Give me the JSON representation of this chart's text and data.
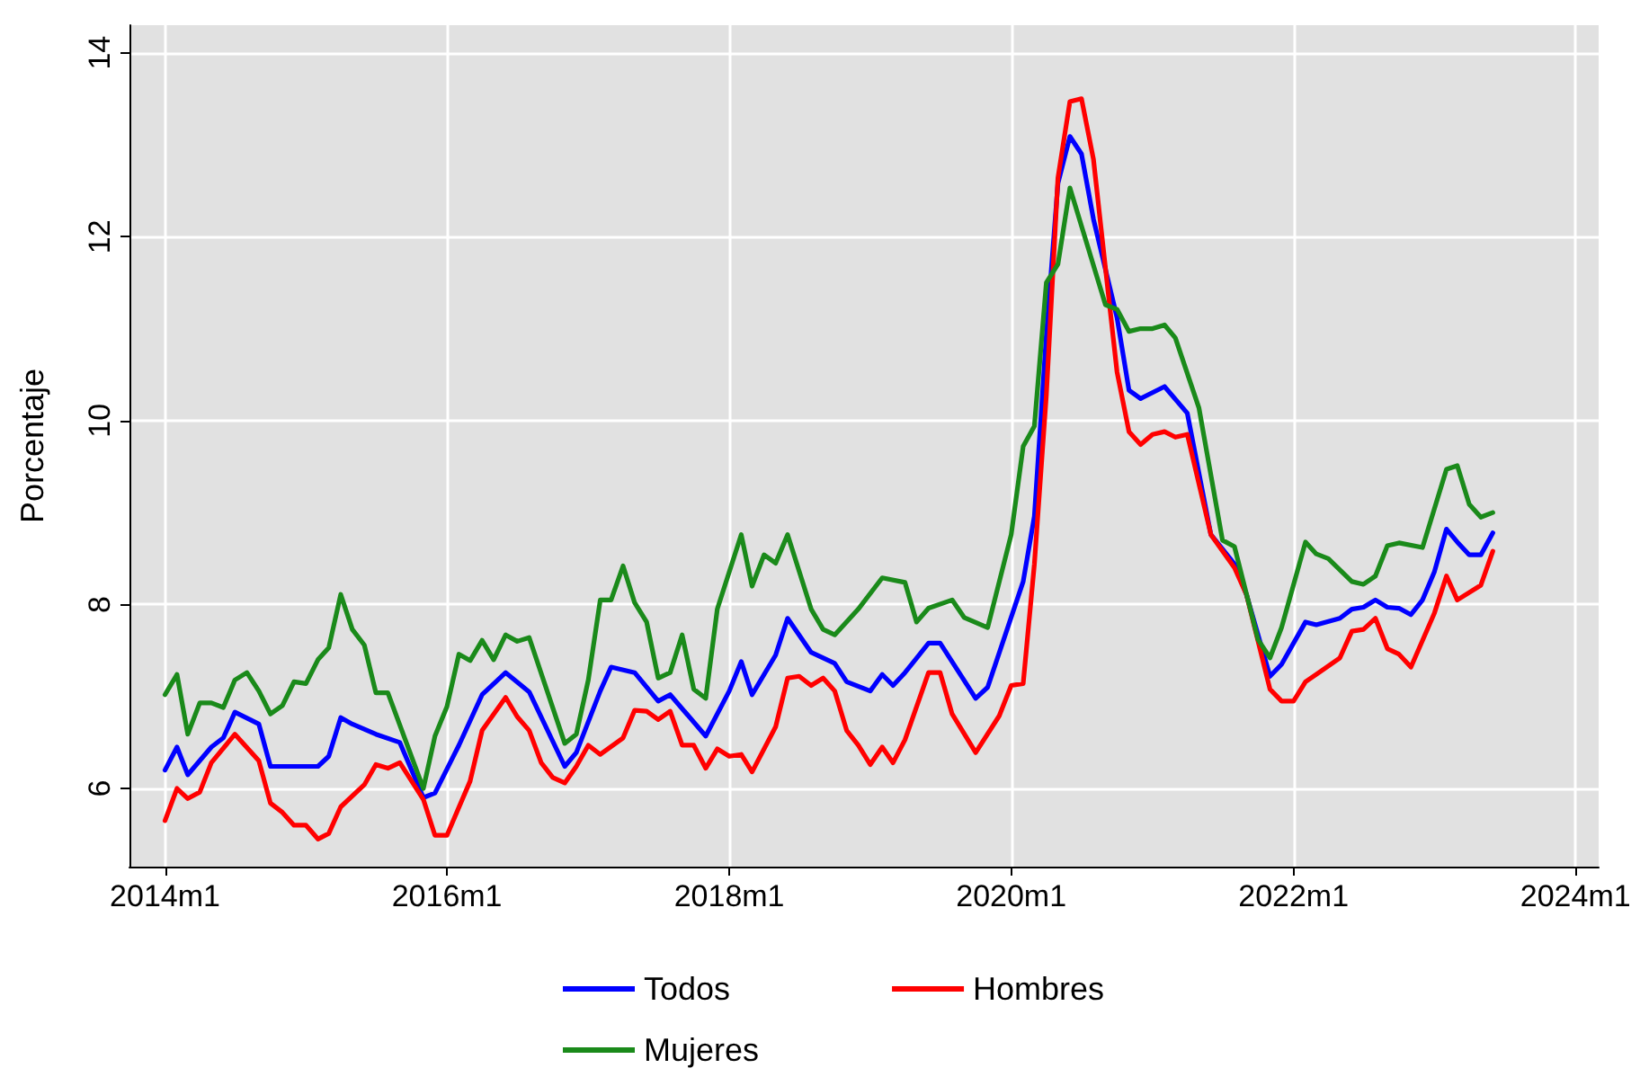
{
  "chart_data": {
    "type": "line",
    "ylabel": "Porcentaje",
    "xlim": [
      "2013-10",
      "2024-03"
    ],
    "ylim": [
      5.15,
      14.3
    ],
    "xticks": [
      {
        "value": "2014-01",
        "label": "2014m1"
      },
      {
        "value": "2016-01",
        "label": "2016m1"
      },
      {
        "value": "2018-01",
        "label": "2018m1"
      },
      {
        "value": "2020-01",
        "label": "2020m1"
      },
      {
        "value": "2022-01",
        "label": "2022m1"
      },
      {
        "value": "2024-01",
        "label": "2024m1"
      }
    ],
    "yticks": [
      6,
      8,
      10,
      12,
      14
    ],
    "grid": true,
    "legend": "bottom",
    "marker": "none",
    "line_style": "solid",
    "series": [
      {
        "name": "Todos",
        "color": "#0000ff",
        "x": [
          "2014-01",
          "2014-02",
          "2014-03",
          "2014-05",
          "2014-06",
          "2014-07",
          "2014-09",
          "2014-10",
          "2015-02",
          "2015-03",
          "2015-04",
          "2015-05",
          "2015-07",
          "2015-09",
          "2015-11",
          "2015-12",
          "2016-02",
          "2016-04",
          "2016-06",
          "2016-08",
          "2016-11",
          "2016-12",
          "2017-02",
          "2017-03",
          "2017-05",
          "2017-07",
          "2017-08",
          "2017-11",
          "2018-01",
          "2018-02",
          "2018-03",
          "2018-05",
          "2018-06",
          "2018-08",
          "2018-10",
          "2018-11",
          "2019-01",
          "2019-02",
          "2019-03",
          "2019-04",
          "2019-06",
          "2019-07",
          "2019-10",
          "2019-11",
          "2020-02",
          "2020-03",
          "2020-04",
          "2020-05",
          "2020-06",
          "2020-07",
          "2020-08",
          "2020-10",
          "2020-11",
          "2020-12",
          "2021-02",
          "2021-04",
          "2021-06",
          "2021-08",
          "2021-09",
          "2021-11",
          "2021-12",
          "2022-02",
          "2022-03",
          "2022-05",
          "2022-06",
          "2022-07",
          "2022-08",
          "2022-09",
          "2022-10",
          "2022-11",
          "2022-12",
          "2023-01",
          "2023-02",
          "2023-03",
          "2023-04",
          "2023-05",
          "2023-06"
        ],
        "values": [
          6.2,
          6.45,
          6.15,
          6.45,
          6.55,
          6.83,
          6.7,
          6.24,
          6.24,
          6.35,
          6.77,
          6.7,
          6.59,
          6.5,
          5.9,
          5.95,
          6.47,
          7.02,
          7.26,
          7.05,
          6.24,
          6.39,
          7.06,
          7.32,
          7.26,
          6.95,
          7.02,
          6.57,
          7.06,
          7.38,
          7.02,
          7.45,
          7.85,
          7.48,
          7.36,
          7.16,
          7.06,
          7.24,
          7.12,
          7.26,
          7.58,
          7.58,
          6.98,
          7.1,
          8.25,
          8.96,
          10.93,
          12.58,
          13.09,
          12.9,
          12.19,
          11.12,
          10.33,
          10.24,
          10.37,
          10.08,
          8.76,
          8.44,
          8.11,
          7.22,
          7.35,
          7.81,
          7.78,
          7.85,
          7.95,
          7.97,
          8.05,
          7.97,
          7.96,
          7.89,
          8.05,
          8.36,
          8.82,
          8.68,
          8.54,
          8.54,
          8.78
        ]
      },
      {
        "name": "Hombres",
        "color": "#ff0000",
        "x": [
          "2014-01",
          "2014-02",
          "2014-03",
          "2014-04",
          "2014-05",
          "2014-07",
          "2014-09",
          "2014-10",
          "2014-11",
          "2014-12",
          "2015-01",
          "2015-02",
          "2015-03",
          "2015-04",
          "2015-06",
          "2015-07",
          "2015-08",
          "2015-09",
          "2015-11",
          "2015-12",
          "2016-01",
          "2016-03",
          "2016-04",
          "2016-06",
          "2016-07",
          "2016-08",
          "2016-09",
          "2016-10",
          "2016-11",
          "2016-12",
          "2017-01",
          "2017-02",
          "2017-04",
          "2017-05",
          "2017-06",
          "2017-07",
          "2017-08",
          "2017-09",
          "2017-10",
          "2017-11",
          "2017-12",
          "2018-01",
          "2018-02",
          "2018-03",
          "2018-05",
          "2018-06",
          "2018-07",
          "2018-08",
          "2018-09",
          "2018-10",
          "2018-11",
          "2018-12",
          "2019-01",
          "2019-02",
          "2019-03",
          "2019-04",
          "2019-06",
          "2019-07",
          "2019-08",
          "2019-10",
          "2019-12",
          "2020-01",
          "2020-02",
          "2020-03",
          "2020-04",
          "2020-05",
          "2020-06",
          "2020-07",
          "2020-08",
          "2020-09",
          "2020-10",
          "2020-11",
          "2020-12",
          "2021-01",
          "2021-02",
          "2021-03",
          "2021-04",
          "2021-06",
          "2021-08",
          "2021-09",
          "2021-11",
          "2021-12",
          "2022-01",
          "2022-02",
          "2022-03",
          "2022-05",
          "2022-06",
          "2022-07",
          "2022-08",
          "2022-09",
          "2022-10",
          "2022-11",
          "2023-01",
          "2023-02",
          "2023-03",
          "2023-05",
          "2023-06"
        ],
        "values": [
          5.65,
          6.0,
          5.89,
          5.96,
          6.28,
          6.59,
          6.3,
          5.84,
          5.74,
          5.6,
          5.6,
          5.45,
          5.51,
          5.8,
          6.04,
          6.26,
          6.22,
          6.28,
          5.88,
          5.49,
          5.49,
          6.08,
          6.63,
          6.99,
          6.78,
          6.63,
          6.28,
          6.12,
          6.06,
          6.24,
          6.47,
          6.37,
          6.55,
          6.85,
          6.84,
          6.75,
          6.84,
          6.47,
          6.47,
          6.22,
          6.43,
          6.35,
          6.37,
          6.18,
          6.67,
          7.2,
          7.22,
          7.12,
          7.2,
          7.06,
          6.63,
          6.47,
          6.26,
          6.45,
          6.28,
          6.53,
          7.26,
          7.26,
          6.81,
          6.39,
          6.79,
          7.12,
          7.14,
          8.44,
          10.28,
          12.64,
          13.47,
          13.5,
          12.84,
          11.66,
          10.53,
          9.88,
          9.74,
          9.85,
          9.88,
          9.82,
          9.85,
          8.76,
          8.4,
          8.11,
          7.08,
          6.95,
          6.95,
          7.16,
          7.24,
          7.42,
          7.71,
          7.73,
          7.85,
          7.52,
          7.46,
          7.32,
          7.91,
          8.31,
          8.05,
          8.21,
          8.58
        ]
      },
      {
        "name": "Mujeres",
        "color": "#1a8a1a",
        "x": [
          "2014-01",
          "2014-02",
          "2014-03",
          "2014-04",
          "2014-05",
          "2014-06",
          "2014-07",
          "2014-08",
          "2014-09",
          "2014-10",
          "2014-11",
          "2014-12",
          "2015-01",
          "2015-02",
          "2015-03",
          "2015-04",
          "2015-05",
          "2015-06",
          "2015-07",
          "2015-08",
          "2015-11",
          "2015-12",
          "2016-01",
          "2016-02",
          "2016-03",
          "2016-04",
          "2016-05",
          "2016-06",
          "2016-07",
          "2016-08",
          "2016-11",
          "2016-12",
          "2017-01",
          "2017-02",
          "2017-03",
          "2017-04",
          "2017-05",
          "2017-06",
          "2017-07",
          "2017-08",
          "2017-09",
          "2017-10",
          "2017-11",
          "2017-12",
          "2018-02",
          "2018-03",
          "2018-04",
          "2018-05",
          "2018-06",
          "2018-08",
          "2018-09",
          "2018-10",
          "2018-12",
          "2019-02",
          "2019-04",
          "2019-05",
          "2019-06",
          "2019-08",
          "2019-09",
          "2019-11",
          "2020-01",
          "2020-02",
          "2020-03",
          "2020-04",
          "2020-05",
          "2020-06",
          "2020-09",
          "2020-10",
          "2020-11",
          "2020-12",
          "2021-01",
          "2021-02",
          "2021-03",
          "2021-05",
          "2021-07",
          "2021-08",
          "2021-10",
          "2021-11",
          "2021-12",
          "2022-02",
          "2022-03",
          "2022-04",
          "2022-06",
          "2022-07",
          "2022-08",
          "2022-09",
          "2022-10",
          "2022-12",
          "2023-02",
          "2023-03",
          "2023-04",
          "2023-05",
          "2023-06"
        ],
        "values": [
          7.02,
          7.24,
          6.59,
          6.93,
          6.93,
          6.88,
          7.18,
          7.26,
          7.06,
          6.81,
          6.9,
          7.16,
          7.14,
          7.4,
          7.53,
          8.11,
          7.73,
          7.56,
          7.04,
          7.04,
          6.0,
          6.57,
          6.89,
          7.46,
          7.39,
          7.61,
          7.4,
          7.67,
          7.6,
          7.64,
          6.49,
          6.59,
          7.18,
          8.05,
          8.05,
          8.42,
          8.02,
          7.81,
          7.2,
          7.26,
          7.67,
          7.08,
          6.98,
          7.95,
          8.76,
          8.2,
          8.54,
          8.45,
          8.76,
          7.95,
          7.73,
          7.67,
          7.95,
          8.29,
          8.24,
          7.81,
          7.96,
          8.05,
          7.86,
          7.75,
          8.76,
          9.72,
          9.94,
          11.5,
          11.7,
          12.53,
          11.26,
          11.21,
          10.97,
          11.0,
          11.0,
          11.04,
          10.9,
          10.14,
          8.7,
          8.63,
          7.62,
          7.42,
          7.75,
          8.68,
          8.55,
          8.5,
          8.25,
          8.22,
          8.31,
          8.64,
          8.67,
          8.62,
          9.47,
          9.51,
          9.09,
          8.95,
          9.0
        ]
      }
    ]
  }
}
